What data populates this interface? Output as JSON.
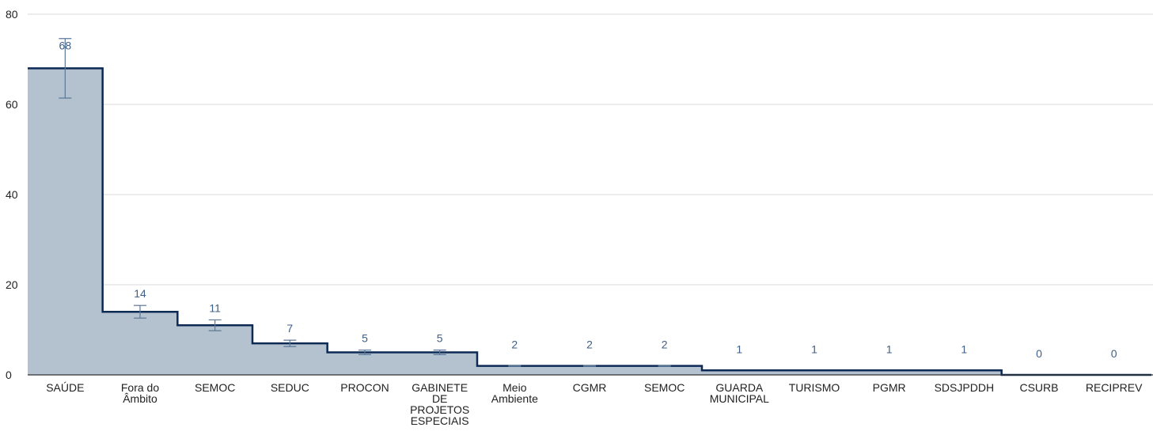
{
  "chart_data": {
    "type": "area",
    "style": "step",
    "categories": [
      [
        "SAÚDE"
      ],
      [
        "Fora do",
        "Âmbito"
      ],
      [
        "SEMOC"
      ],
      [
        "SEDUC"
      ],
      [
        "PROCON"
      ],
      [
        "GABINETE",
        "DE",
        "PROJETOS",
        "ESPECIAIS"
      ],
      [
        "Meio",
        "Ambiente"
      ],
      [
        "CGMR"
      ],
      [
        "SEMOC"
      ],
      [
        "GUARDA",
        "MUNICIPAL"
      ],
      [
        "TURISMO"
      ],
      [
        "PGMR"
      ],
      [
        "SDSJPDDH"
      ],
      [
        "CSURB"
      ],
      [
        "RECIPREV"
      ]
    ],
    "values": [
      68,
      14,
      11,
      7,
      5,
      5,
      2,
      2,
      2,
      1,
      1,
      1,
      1,
      0,
      0
    ],
    "value_labels": [
      "68",
      "14",
      "11",
      "7",
      "5",
      "5",
      "2",
      "2",
      "2",
      "1",
      "1",
      "1",
      "1",
      "0",
      "0"
    ],
    "error_bars": [
      [
        61.4,
        74.6
      ],
      [
        12.6,
        15.4
      ],
      [
        9.8,
        12.2
      ],
      [
        6.3,
        7.7
      ],
      [
        4.5,
        5.5
      ],
      [
        4.5,
        5.5
      ],
      [
        1.9,
        2.1
      ],
      [
        1.9,
        2.1
      ],
      [
        1.9,
        2.1
      ],
      [
        1,
        1
      ],
      [
        1,
        1
      ],
      [
        1,
        1
      ],
      [
        1,
        1
      ],
      [
        0,
        0
      ],
      [
        0,
        0
      ]
    ],
    "ylim": [
      0,
      80
    ],
    "yticks": [
      0,
      20,
      40,
      60,
      80
    ],
    "ytick_labels": [
      "0",
      "20",
      "40",
      "60",
      "80"
    ],
    "grid": true,
    "title": "",
    "xlabel": "",
    "ylabel": "",
    "colors": {
      "fill": "#b4c2d0",
      "line": "#0d2a55",
      "error_bar": "#5c7898",
      "data_label": "#3f5f86",
      "grid": "#d9d9d9",
      "axis": "#333333"
    }
  }
}
